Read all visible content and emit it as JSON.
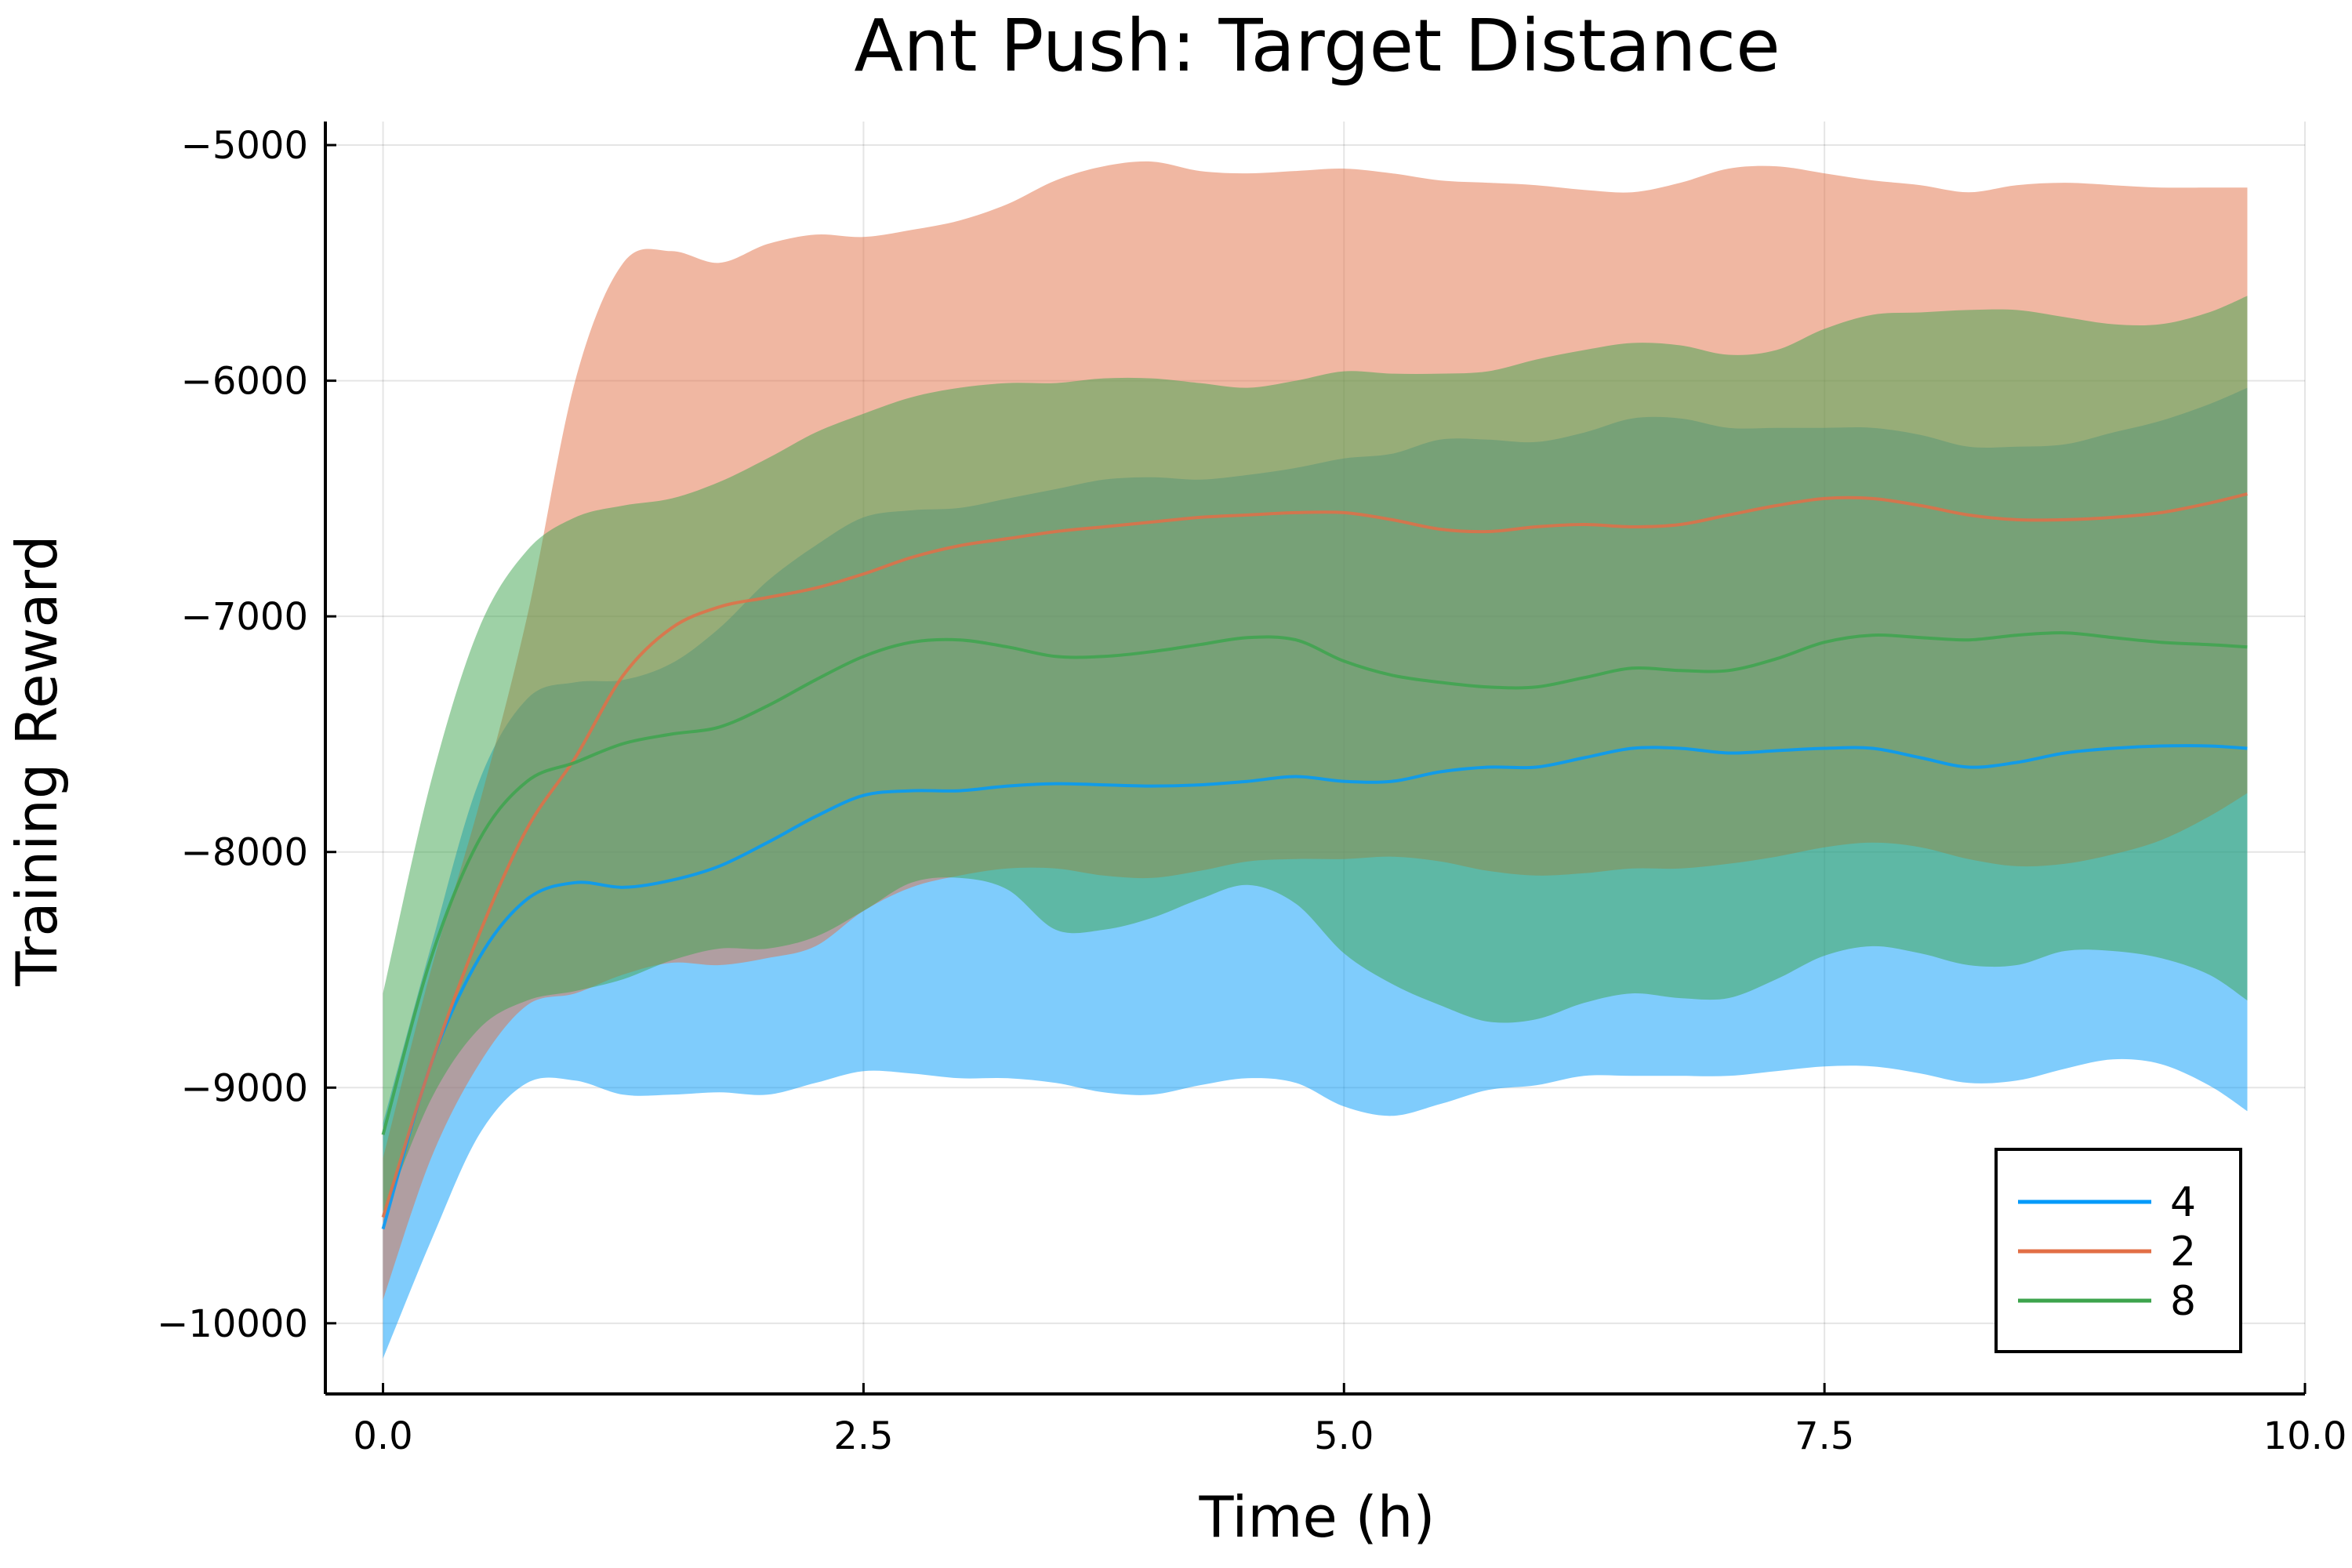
{
  "chart_data": {
    "type": "line",
    "title": "Ant Push: Target Distance",
    "xlabel": "Time (h)",
    "ylabel": "Training Reward",
    "xlim": [
      -0.3,
      10.0
    ],
    "ylim": [
      -10300,
      -4900
    ],
    "xticks": [
      0.0,
      2.5,
      5.0,
      7.5,
      10.0
    ],
    "xtick_labels": [
      "0.0",
      "2.5",
      "5.0",
      "7.5",
      "10.0"
    ],
    "yticks": [
      -10000,
      -9000,
      -8000,
      -7000,
      -6000,
      -5000
    ],
    "ytick_labels": [
      "−10000",
      "−9000",
      "−8000",
      "−7000",
      "−6000",
      "−5000"
    ],
    "grid": true,
    "legend_position": "bottom-right",
    "band_opacity": 0.5,
    "x": [
      0.0,
      0.25,
      0.5,
      0.75,
      1.0,
      1.25,
      1.5,
      1.75,
      2.0,
      2.25,
      2.5,
      2.75,
      3.0,
      3.25,
      3.5,
      3.75,
      4.0,
      4.25,
      4.5,
      4.75,
      5.0,
      5.25,
      5.5,
      5.75,
      6.0,
      6.25,
      6.5,
      6.75,
      7.0,
      7.25,
      7.5,
      7.75,
      8.0,
      8.25,
      8.5,
      8.75,
      9.0,
      9.25,
      9.5,
      9.7
    ],
    "series": [
      {
        "name": "4",
        "color": "#009AFA",
        "mean": [
          -9600,
          -8900,
          -8450,
          -8200,
          -8130,
          -8150,
          -8120,
          -8060,
          -7960,
          -7850,
          -7760,
          -7740,
          -7740,
          -7720,
          -7710,
          -7715,
          -7720,
          -7715,
          -7700,
          -7680,
          -7700,
          -7700,
          -7660,
          -7640,
          -7640,
          -7600,
          -7560,
          -7560,
          -7580,
          -7570,
          -7560,
          -7560,
          -7600,
          -7640,
          -7620,
          -7580,
          -7560,
          -7550,
          -7550,
          -7560
        ],
        "upper": [
          -9150,
          -8400,
          -7700,
          -7350,
          -7280,
          -7270,
          -7200,
          -7050,
          -6850,
          -6700,
          -6580,
          -6550,
          -6540,
          -6500,
          -6460,
          -6420,
          -6410,
          -6420,
          -6400,
          -6370,
          -6330,
          -6310,
          -6250,
          -6250,
          -6260,
          -6220,
          -6160,
          -6160,
          -6200,
          -6200,
          -6200,
          -6200,
          -6230,
          -6280,
          -6280,
          -6270,
          -6220,
          -6170,
          -6100,
          -6030
        ],
        "lower": [
          -10150,
          -9650,
          -9200,
          -8980,
          -8970,
          -9030,
          -9030,
          -9020,
          -9030,
          -8980,
          -8930,
          -8940,
          -8960,
          -8960,
          -8980,
          -9020,
          -9030,
          -8990,
          -8960,
          -8980,
          -9080,
          -9120,
          -9070,
          -9010,
          -8990,
          -8950,
          -8950,
          -8950,
          -8950,
          -8930,
          -8910,
          -8910,
          -8940,
          -8980,
          -8970,
          -8920,
          -8880,
          -8900,
          -8990,
          -9100
        ]
      },
      {
        "name": "2",
        "color": "#E26F46",
        "mean": [
          -9550,
          -8900,
          -8350,
          -7900,
          -7600,
          -7250,
          -7050,
          -6960,
          -6920,
          -6880,
          -6820,
          -6750,
          -6700,
          -6670,
          -6640,
          -6620,
          -6600,
          -6580,
          -6570,
          -6560,
          -6560,
          -6590,
          -6630,
          -6640,
          -6620,
          -6610,
          -6620,
          -6610,
          -6570,
          -6530,
          -6500,
          -6500,
          -6530,
          -6570,
          -6590,
          -6590,
          -6580,
          -6560,
          -6520,
          -6480
        ],
        "upper": [
          -9300,
          -8500,
          -7800,
          -7000,
          -6000,
          -5500,
          -5450,
          -5500,
          -5420,
          -5380,
          -5390,
          -5360,
          -5320,
          -5250,
          -5150,
          -5090,
          -5070,
          -5110,
          -5120,
          -5110,
          -5100,
          -5120,
          -5150,
          -5160,
          -5170,
          -5190,
          -5200,
          -5160,
          -5100,
          -5090,
          -5120,
          -5150,
          -5170,
          -5200,
          -5170,
          -5160,
          -5170,
          -5180,
          -5180,
          -5180
        ],
        "lower": [
          -9900,
          -9300,
          -8900,
          -8650,
          -8600,
          -8520,
          -8470,
          -8480,
          -8450,
          -8400,
          -8250,
          -8150,
          -8100,
          -8070,
          -8070,
          -8100,
          -8110,
          -8080,
          -8040,
          -8030,
          -8030,
          -8020,
          -8040,
          -8080,
          -8100,
          -8090,
          -8070,
          -8070,
          -8050,
          -8020,
          -7980,
          -7960,
          -7980,
          -8030,
          -8060,
          -8050,
          -8010,
          -7950,
          -7850,
          -7750
        ]
      },
      {
        "name": "8",
        "color": "#3DA44D",
        "mean": [
          -9200,
          -8450,
          -7950,
          -7700,
          -7620,
          -7540,
          -7500,
          -7470,
          -7380,
          -7270,
          -7170,
          -7110,
          -7100,
          -7130,
          -7170,
          -7170,
          -7150,
          -7120,
          -7090,
          -7100,
          -7190,
          -7250,
          -7280,
          -7300,
          -7300,
          -7260,
          -7220,
          -7230,
          -7230,
          -7180,
          -7110,
          -7080,
          -7090,
          -7100,
          -7080,
          -7070,
          -7090,
          -7110,
          -7120,
          -7130
        ],
        "upper": [
          -8600,
          -7700,
          -7050,
          -6720,
          -6580,
          -6530,
          -6500,
          -6430,
          -6330,
          -6220,
          -6140,
          -6070,
          -6030,
          -6010,
          -6010,
          -5990,
          -5990,
          -6010,
          -6030,
          -6000,
          -5960,
          -5970,
          -5970,
          -5960,
          -5910,
          -5870,
          -5840,
          -5850,
          -5890,
          -5870,
          -5780,
          -5720,
          -5710,
          -5700,
          -5700,
          -5730,
          -5760,
          -5760,
          -5710,
          -5640
        ],
        "lower": [
          -9550,
          -9050,
          -8750,
          -8630,
          -8590,
          -8540,
          -8460,
          -8410,
          -8410,
          -8360,
          -8250,
          -8130,
          -8110,
          -8160,
          -8330,
          -8330,
          -8280,
          -8200,
          -8140,
          -8220,
          -8430,
          -8560,
          -8650,
          -8720,
          -8710,
          -8640,
          -8600,
          -8620,
          -8620,
          -8540,
          -8440,
          -8400,
          -8430,
          -8480,
          -8480,
          -8420,
          -8420,
          -8450,
          -8520,
          -8630
        ]
      }
    ]
  }
}
